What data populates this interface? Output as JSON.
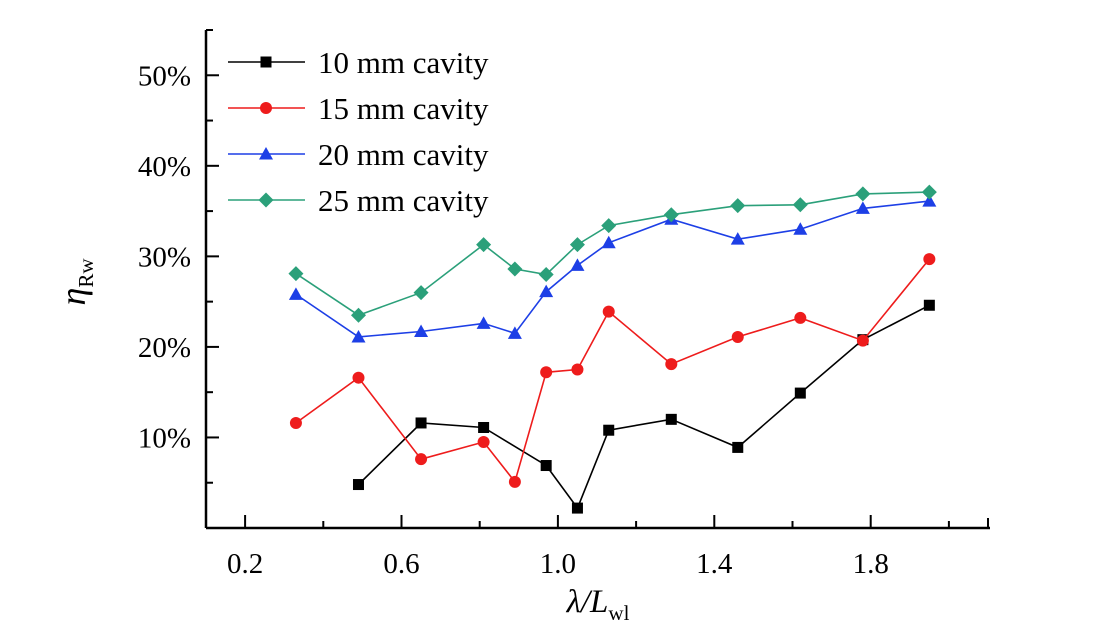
{
  "chart_data": {
    "type": "line",
    "xlabel": {
      "main": "λ/L",
      "sub": "wl"
    },
    "ylabel": {
      "main": "η",
      "sub": "Rw"
    },
    "xlim": [
      0.1,
      2.1
    ],
    "ylim": [
      0,
      55
    ],
    "x_ticks": [
      0.2,
      0.6,
      1.0,
      1.4,
      1.8
    ],
    "x_tick_labels": [
      "0.2",
      "0.6",
      "1.0",
      "1.4",
      "1.8"
    ],
    "y_ticks": [
      10,
      20,
      30,
      40,
      50
    ],
    "y_tick_labels": [
      "10%",
      "20%",
      "30%",
      "40%",
      "50%"
    ],
    "grid": false,
    "legend_position": "top-left",
    "series": [
      {
        "name": "10 mm cavity",
        "color": "#000000",
        "marker": "square",
        "x": [
          0.49,
          0.65,
          0.81,
          0.97,
          1.05,
          1.13,
          1.29,
          1.46,
          1.62,
          1.78,
          1.95
        ],
        "y": [
          4.8,
          11.6,
          11.1,
          6.9,
          2.2,
          10.8,
          12.0,
          8.9,
          14.9,
          20.8,
          24.6
        ]
      },
      {
        "name": "15 mm cavity",
        "color": "#ee1c1c",
        "marker": "circle",
        "x": [
          0.33,
          0.49,
          0.65,
          0.81,
          0.89,
          0.97,
          1.05,
          1.13,
          1.29,
          1.46,
          1.62,
          1.78,
          1.95
        ],
        "y": [
          11.6,
          16.6,
          7.6,
          9.5,
          5.1,
          17.2,
          17.5,
          23.9,
          18.1,
          21.1,
          23.2,
          20.7,
          29.7
        ]
      },
      {
        "name": "20 mm cavity",
        "color": "#1d3fe6",
        "marker": "triangle",
        "x": [
          0.33,
          0.49,
          0.65,
          0.81,
          0.89,
          0.97,
          1.05,
          1.13,
          1.29,
          1.46,
          1.62,
          1.78,
          1.95
        ],
        "y": [
          25.8,
          21.1,
          21.7,
          22.6,
          21.5,
          26.1,
          29.0,
          31.5,
          34.1,
          31.9,
          33.0,
          35.3,
          36.1
        ]
      },
      {
        "name": "25 mm cavity",
        "color": "#2ba07a",
        "marker": "diamond",
        "x": [
          0.33,
          0.49,
          0.65,
          0.81,
          0.89,
          0.97,
          1.05,
          1.13,
          1.29,
          1.46,
          1.62,
          1.78,
          1.95
        ],
        "y": [
          28.1,
          23.5,
          26.0,
          31.3,
          28.6,
          28.0,
          31.3,
          33.4,
          34.6,
          35.6,
          35.7,
          36.9,
          37.1
        ]
      }
    ]
  }
}
